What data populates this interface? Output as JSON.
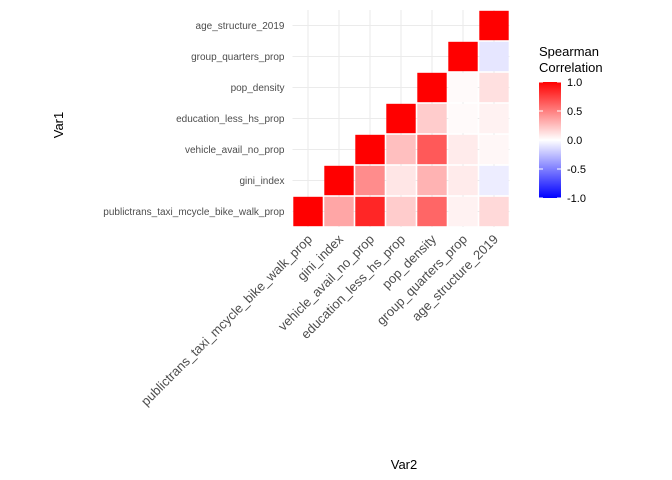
{
  "chart_data": {
    "type": "heatmap",
    "xlabel": "Var2",
    "ylabel": "Var1",
    "variables": [
      "publictrans_taxi_mcycle_bike_walk_prop",
      "gini_index",
      "vehicle_avail_no_prop",
      "education_less_hs_prop",
      "pop_density",
      "group_quarters_prop",
      "age_structure_2019"
    ],
    "cells": [
      {
        "var1": "publictrans_taxi_mcycle_bike_walk_prop",
        "var2": "publictrans_taxi_mcycle_bike_walk_prop",
        "value": 1.0
      },
      {
        "var1": "publictrans_taxi_mcycle_bike_walk_prop",
        "var2": "gini_index",
        "value": 0.35
      },
      {
        "var1": "publictrans_taxi_mcycle_bike_walk_prop",
        "var2": "vehicle_avail_no_prop",
        "value": 0.85
      },
      {
        "var1": "publictrans_taxi_mcycle_bike_walk_prop",
        "var2": "education_less_hs_prop",
        "value": 0.2
      },
      {
        "var1": "publictrans_taxi_mcycle_bike_walk_prop",
        "var2": "pop_density",
        "value": 0.6
      },
      {
        "var1": "publictrans_taxi_mcycle_bike_walk_prop",
        "var2": "group_quarters_prop",
        "value": 0.05
      },
      {
        "var1": "publictrans_taxi_mcycle_bike_walk_prop",
        "var2": "age_structure_2019",
        "value": 0.15
      },
      {
        "var1": "gini_index",
        "var2": "gini_index",
        "value": 1.0
      },
      {
        "var1": "gini_index",
        "var2": "vehicle_avail_no_prop",
        "value": 0.45
      },
      {
        "var1": "gini_index",
        "var2": "education_less_hs_prop",
        "value": 0.1
      },
      {
        "var1": "gini_index",
        "var2": "pop_density",
        "value": 0.3
      },
      {
        "var1": "gini_index",
        "var2": "group_quarters_prop",
        "value": 0.08
      },
      {
        "var1": "gini_index",
        "var2": "age_structure_2019",
        "value": -0.07
      },
      {
        "var1": "vehicle_avail_no_prop",
        "var2": "vehicle_avail_no_prop",
        "value": 1.0
      },
      {
        "var1": "vehicle_avail_no_prop",
        "var2": "education_less_hs_prop",
        "value": 0.25
      },
      {
        "var1": "vehicle_avail_no_prop",
        "var2": "pop_density",
        "value": 0.65
      },
      {
        "var1": "vehicle_avail_no_prop",
        "var2": "group_quarters_prop",
        "value": 0.08
      },
      {
        "var1": "vehicle_avail_no_prop",
        "var2": "age_structure_2019",
        "value": 0.03
      },
      {
        "var1": "education_less_hs_prop",
        "var2": "education_less_hs_prop",
        "value": 1.0
      },
      {
        "var1": "education_less_hs_prop",
        "var2": "pop_density",
        "value": 0.2
      },
      {
        "var1": "education_less_hs_prop",
        "var2": "group_quarters_prop",
        "value": 0.02
      },
      {
        "var1": "education_less_hs_prop",
        "var2": "age_structure_2019",
        "value": 0.05
      },
      {
        "var1": "pop_density",
        "var2": "pop_density",
        "value": 1.0
      },
      {
        "var1": "pop_density",
        "var2": "group_quarters_prop",
        "value": 0.02
      },
      {
        "var1": "pop_density",
        "var2": "age_structure_2019",
        "value": 0.12
      },
      {
        "var1": "group_quarters_prop",
        "var2": "group_quarters_prop",
        "value": 1.0
      },
      {
        "var1": "group_quarters_prop",
        "var2": "age_structure_2019",
        "value": -0.1
      },
      {
        "var1": "age_structure_2019",
        "var2": "age_structure_2019",
        "value": 1.0
      }
    ],
    "legend": {
      "title_line1": "Spearman",
      "title_line2": "Correlation",
      "ticks": [
        "1.0",
        "0.5",
        "0.0",
        "-0.5",
        "-1.0"
      ],
      "tick_values": [
        1.0,
        0.5,
        0.0,
        -0.5,
        -1.0
      ],
      "limits": [
        -1.0,
        1.0
      ],
      "low_color": "#0000ff",
      "mid_color": "#ffffff",
      "high_color": "#ff0000",
      "placement": "right"
    },
    "grid": true
  }
}
